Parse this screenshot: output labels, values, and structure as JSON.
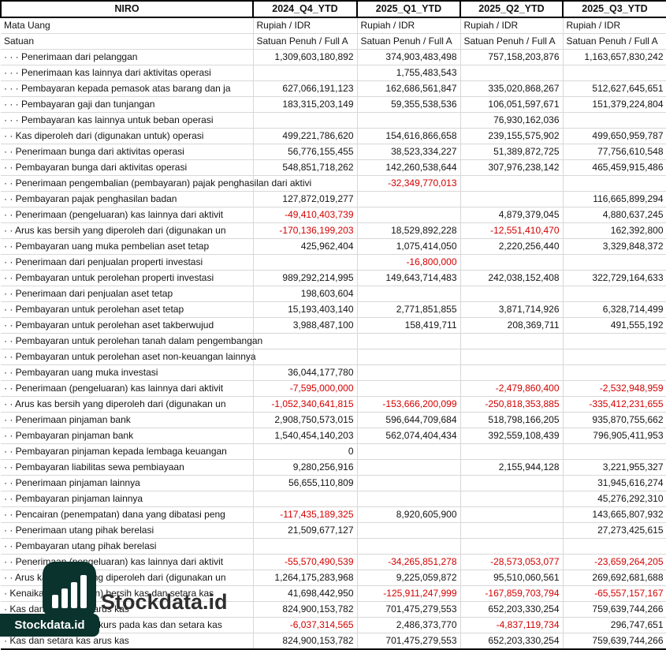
{
  "table": {
    "company": "NIRO",
    "periods": [
      "2024_Q4_YTD",
      "2025_Q1_YTD",
      "2025_Q2_YTD",
      "2025_Q3_YTD"
    ],
    "meta_rows": [
      {
        "label": "Mata Uang",
        "values": [
          "Rupiah / IDR",
          "Rupiah / IDR",
          "Rupiah / IDR",
          "Rupiah / IDR"
        ]
      },
      {
        "label": "Satuan",
        "values": [
          "Satuan Penuh / Full A",
          "Satuan Penuh / Full A",
          "Satuan Penuh / Full A",
          "Satuan Penuh / Full A"
        ]
      }
    ],
    "rows": [
      {
        "label": "· · · Penerimaan dari pelanggan",
        "values": [
          "1,309,603,180,892",
          "374,903,483,498",
          "757,158,203,876",
          "1,163,657,830,242"
        ]
      },
      {
        "label": "· · · Penerimaan kas lainnya dari aktivitas operasi",
        "values": [
          "",
          "1,755,483,543",
          "",
          ""
        ]
      },
      {
        "label": "· · · Pembayaran kepada pemasok atas barang dan ja",
        "values": [
          "627,066,191,123",
          "162,686,561,847",
          "335,020,868,267",
          "512,627,645,651"
        ]
      },
      {
        "label": "· · · Pembayaran gaji dan tunjangan",
        "values": [
          "183,315,203,149",
          "59,355,538,536",
          "106,051,597,671",
          "151,379,224,804"
        ]
      },
      {
        "label": "· · · Pembayaran kas lainnya untuk beban operasi",
        "values": [
          "",
          "",
          "76,930,162,036",
          ""
        ]
      },
      {
        "label": "· · Kas diperoleh dari (digunakan untuk) operasi",
        "values": [
          "499,221,786,620",
          "154,616,866,658",
          "239,155,575,902",
          "499,650,959,787"
        ]
      },
      {
        "label": "· · Penerimaan bunga dari aktivitas operasi",
        "values": [
          "56,776,155,455",
          "38,523,334,227",
          "51,389,872,725",
          "77,756,610,548"
        ]
      },
      {
        "label": "· · Pembayaran bunga dari aktivitas operasi",
        "values": [
          "548,851,718,262",
          "142,260,538,644",
          "307,976,238,142",
          "465,459,915,486"
        ]
      },
      {
        "label": "· · Penerimaan pengembalian (pembayaran) pajak penghasilan dari aktivi",
        "values": [
          "",
          "-32,349,770,013",
          "",
          ""
        ]
      },
      {
        "label": "· · Pembayaran pajak penghasilan badan",
        "values": [
          "127,872,019,277",
          "",
          "",
          "116,665,899,294"
        ]
      },
      {
        "label": "· · Penerimaan (pengeluaran) kas lainnya dari aktivit",
        "values": [
          "-49,410,403,739",
          "",
          "4,879,379,045",
          "4,880,637,245"
        ]
      },
      {
        "label": "· · Arus kas bersih yang diperoleh dari (digunakan un",
        "values": [
          "-170,136,199,203",
          "18,529,892,228",
          "-12,551,410,470",
          "162,392,800"
        ]
      },
      {
        "label": "· · Pembayaran uang muka pembelian aset tetap",
        "values": [
          "425,962,404",
          "1,075,414,050",
          "2,220,256,440",
          "3,329,848,372"
        ]
      },
      {
        "label": "· · Penerimaan dari penjualan properti investasi",
        "values": [
          "",
          "-16,800,000",
          "",
          ""
        ]
      },
      {
        "label": "· · Pembayaran untuk perolehan properti investasi",
        "values": [
          "989,292,214,995",
          "149,643,714,483",
          "242,038,152,408",
          "322,729,164,633"
        ]
      },
      {
        "label": "· · Penerimaan dari penjualan aset tetap",
        "values": [
          "198,603,604",
          "",
          "",
          ""
        ]
      },
      {
        "label": "· · Pembayaran untuk perolehan aset tetap",
        "values": [
          "15,193,403,140",
          "2,771,851,855",
          "3,871,714,926",
          "6,328,714,499"
        ]
      },
      {
        "label": "· · Pembayaran untuk perolehan aset takberwujud",
        "values": [
          "3,988,487,100",
          "158,419,711",
          "208,369,711",
          "491,555,192"
        ]
      },
      {
        "label": "· · Pembayaran untuk perolehan tanah dalam pengembangan",
        "values": [
          "",
          "",
          "",
          ""
        ]
      },
      {
        "label": "· · Pembayaran untuk perolehan aset non-keuangan lainnya",
        "values": [
          "",
          "",
          "",
          ""
        ]
      },
      {
        "label": "· · Pembayaran uang muka investasi",
        "values": [
          "36,044,177,780",
          "",
          "",
          ""
        ]
      },
      {
        "label": "· · Penerimaan (pengeluaran) kas lainnya dari aktivit",
        "values": [
          "-7,595,000,000",
          "",
          "-2,479,860,400",
          "-2,532,948,959"
        ]
      },
      {
        "label": "· · Arus kas bersih yang diperoleh dari (digunakan un",
        "values": [
          "-1,052,340,641,815",
          "-153,666,200,099",
          "-250,818,353,885",
          "-335,412,231,655"
        ]
      },
      {
        "label": "· · Penerimaan pinjaman bank",
        "values": [
          "2,908,750,573,015",
          "596,644,709,684",
          "518,798,166,205",
          "935,870,755,662"
        ]
      },
      {
        "label": "· · Pembayaran pinjaman bank",
        "values": [
          "1,540,454,140,203",
          "562,074,404,434",
          "392,559,108,439",
          "796,905,411,953"
        ]
      },
      {
        "label": "· · Pembayaran pinjaman kepada lembaga keuangan",
        "values": [
          "0",
          "",
          "",
          ""
        ]
      },
      {
        "label": "· · Pembayaran liabilitas sewa pembiayaan",
        "values": [
          "9,280,256,916",
          "",
          "2,155,944,128",
          "3,221,955,327"
        ]
      },
      {
        "label": "· · Penerimaan pinjaman lainnya",
        "values": [
          "56,655,110,809",
          "",
          "",
          "31,945,616,274"
        ]
      },
      {
        "label": "· · Pembayaran pinjaman lainnya",
        "values": [
          "",
          "",
          "",
          "45,276,292,310"
        ]
      },
      {
        "label": "· · Pencairan (penempatan) dana yang dibatasi peng",
        "values": [
          "-117,435,189,325",
          "8,920,605,900",
          "",
          "143,665,807,932"
        ]
      },
      {
        "label": "· · Penerimaan utang pihak berelasi",
        "values": [
          "21,509,677,127",
          "",
          "",
          "27,273,425,615"
        ]
      },
      {
        "label": "· · Pembayaran utang pihak berelasi",
        "values": [
          "",
          "",
          "",
          ""
        ]
      },
      {
        "label": "· · Penerimaan (pengeluaran) kas lainnya dari aktivit",
        "values": [
          "-55,570,490,539",
          "-34,265,851,278",
          "-28,573,053,077",
          "-23,659,264,205"
        ]
      },
      {
        "label": "· · Arus kas bersih yang diperoleh dari (digunakan un",
        "values": [
          "1,264,175,283,968",
          "9,225,059,872",
          "95,510,060,561",
          "269,692,681,688"
        ]
      },
      {
        "label": "· Kenaikan (penurunan) bersih kas dan setara kas",
        "values": [
          "41,698,442,950",
          "-125,911,247,999",
          "-167,859,703,794",
          "-65,557,157,167"
        ]
      },
      {
        "label": "· Kas dan setara kas arus kas",
        "values": [
          "824,900,153,782",
          "701,475,279,553",
          "652,203,330,254",
          "759,639,744,266"
        ]
      },
      {
        "label": "· Efek perubahan nilai kurs pada kas dan setara kas",
        "values": [
          "-6,037,314,565",
          "2,486,373,770",
          "-4,837,119,734",
          "296,747,651"
        ]
      },
      {
        "label": "· Kas dan setara kas arus kas",
        "values": [
          "824,900,153,782",
          "701,475,279,553",
          "652,203,330,254",
          "759,639,744,266"
        ]
      }
    ]
  },
  "watermark": {
    "brand": "Stockdata.id",
    "pill_text": "Stockdata.id",
    "logo_icon": "bar-chart-icon",
    "logo_color": "#0b332e"
  },
  "colors": {
    "negative_value": "#d40000",
    "gridline": "#d8d8d8",
    "header_border": "#000000"
  }
}
